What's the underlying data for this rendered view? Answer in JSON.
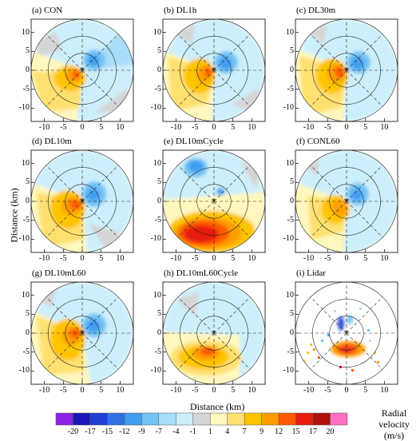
{
  "panels": [
    {
      "title": "(a) CON"
    },
    {
      "title": "(b) DL1h"
    },
    {
      "title": "(c) DL30m"
    },
    {
      "title": "(d) DL10m"
    },
    {
      "title": "(e) DL10mCycle"
    },
    {
      "title": "(f) CONL60"
    },
    {
      "title": "(g) DL10mL60"
    },
    {
      "title": "(h) DL10mL60Cycle"
    },
    {
      "title": "(i) Lidar"
    }
  ],
  "axes": {
    "ylabel": "Distance (km)",
    "xlabel": "Distance (km)",
    "yticks": [
      "10",
      "5",
      "0",
      "-5",
      "-10"
    ],
    "xticks": [
      "-10",
      "-5",
      "0",
      "5",
      "10"
    ]
  },
  "colorbar": {
    "title": "Radial velocity",
    "unit": "(m/s)",
    "labels": [
      "-20",
      "-17",
      "-15",
      "-12",
      "-9",
      "-7",
      "-4",
      "-1",
      "1",
      "4",
      "7",
      "9",
      "12",
      "15",
      "17",
      "20"
    ],
    "colors": [
      "#8b23e6",
      "#1c15b8",
      "#1e3fd2",
      "#2f72e0",
      "#3f9df0",
      "#71c2f5",
      "#a7ddf8",
      "#cdeffb",
      "#d5d5d5",
      "#fff7bd",
      "#ffe070",
      "#ffc400",
      "#ff9d00",
      "#ff5a00",
      "#e81d0d",
      "#b01010",
      "#ff6fc1"
    ]
  }
}
